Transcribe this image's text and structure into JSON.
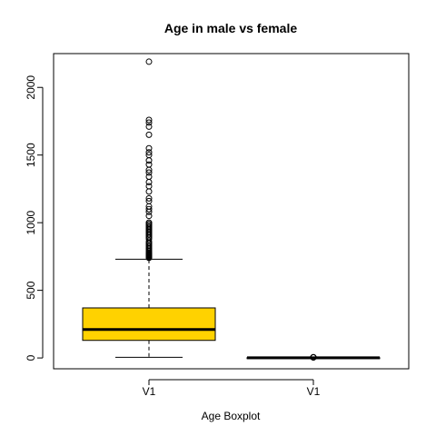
{
  "chart_data": {
    "type": "boxplot",
    "title": "Age in male vs female",
    "xlabel": "Age Boxplot",
    "ylabel": "",
    "ylim": [
      -80,
      2250
    ],
    "yticks": [
      0,
      500,
      1000,
      1500,
      2000
    ],
    "categories": [
      "V1",
      "V1"
    ],
    "grid": false,
    "colors": {
      "box_fill": "#FFD200",
      "outline": "#000000",
      "background": "#FFFFFF"
    },
    "boxes": [
      {
        "label": "V1",
        "min": 5,
        "q1": 130,
        "median": 210,
        "q3": 370,
        "max": 730,
        "outliers": [
          740,
          745,
          750,
          755,
          760,
          765,
          770,
          775,
          780,
          790,
          800,
          810,
          820,
          830,
          840,
          850,
          860,
          880,
          890,
          900,
          910,
          920,
          930,
          940,
          950,
          960,
          970,
          980,
          990,
          1000,
          1050,
          1080,
          1100,
          1120,
          1160,
          1180,
          1230,
          1270,
          1300,
          1340,
          1370,
          1390,
          1430,
          1460,
          1500,
          1520,
          1550,
          1650,
          1710,
          1740,
          1760,
          2190
        ],
        "filled": true
      },
      {
        "label": "V1",
        "min": 0,
        "q1": 0,
        "median": 1,
        "q3": 2,
        "max": 3,
        "outliers": [
          4,
          5,
          6
        ],
        "filled": false
      }
    ]
  }
}
